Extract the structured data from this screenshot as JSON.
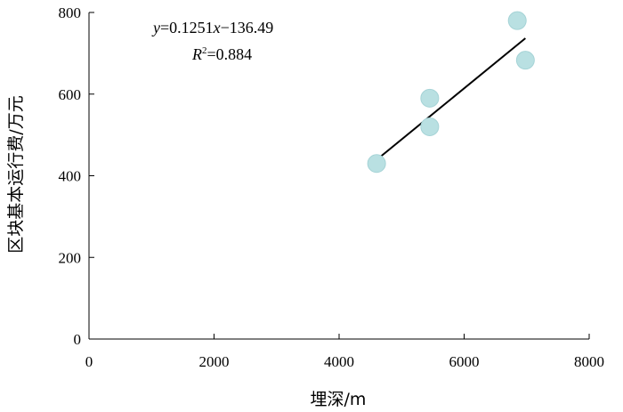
{
  "chart_data": {
    "type": "scatter",
    "xlabel": "埋深/m",
    "ylabel": "区块基本运行费/万元",
    "xlim": [
      0,
      8000
    ],
    "ylim": [
      0,
      800
    ],
    "xticks": [
      "0",
      "2000",
      "4000",
      "6000",
      "8000"
    ],
    "yticks": [
      "0",
      "200",
      "400",
      "600",
      "800"
    ],
    "grid": false,
    "points": [
      {
        "x": 4600,
        "y": 430
      },
      {
        "x": 5450,
        "y": 590
      },
      {
        "x": 5450,
        "y": 520
      },
      {
        "x": 6850,
        "y": 780
      },
      {
        "x": 6980,
        "y": 683
      }
    ],
    "trendline": {
      "slope": 0.1251,
      "intercept": -136.49,
      "x_range": [
        4600,
        6980
      ],
      "equation_y": "y",
      "equation_rhs": "=0.1251",
      "equation_x": "x",
      "equation_tail": "−136.49",
      "r2_label": "R",
      "r2_sup": "2",
      "r2_value": "=0.884"
    }
  }
}
